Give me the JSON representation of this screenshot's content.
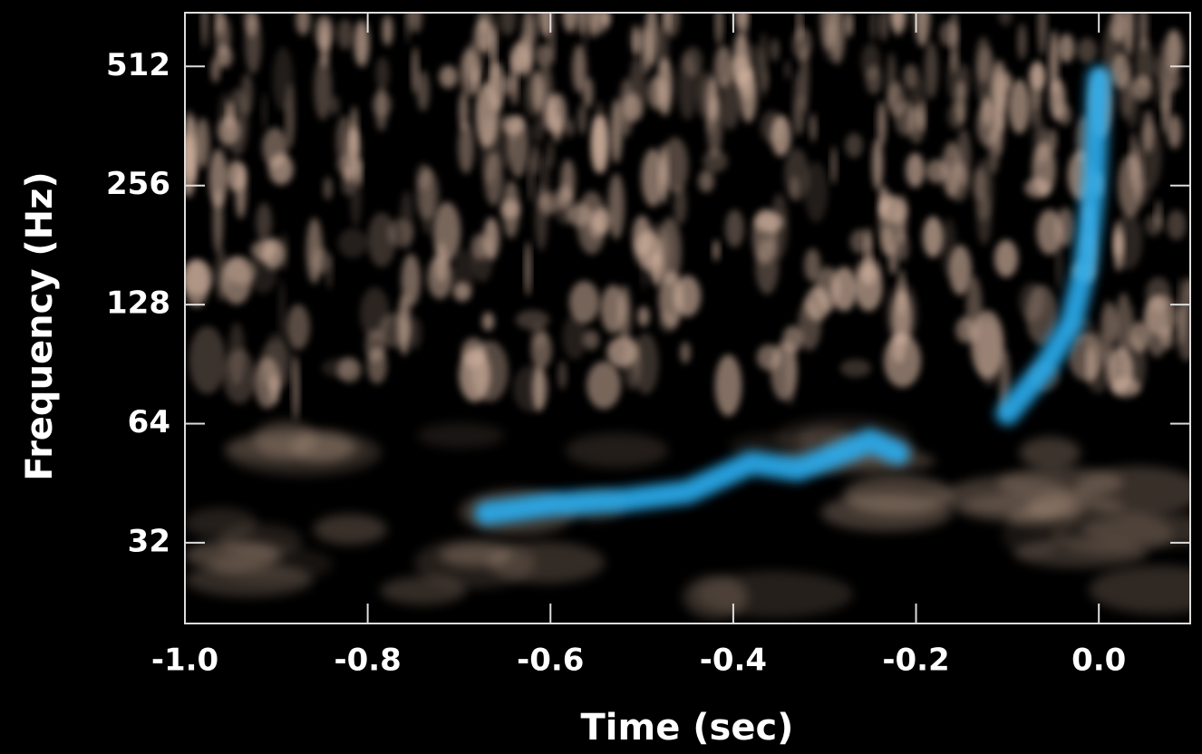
{
  "chart_data": {
    "type": "line",
    "x_label": "Time (sec)",
    "y_label": "Frequency (Hz)",
    "xlim": [
      -1.0,
      0.1
    ],
    "xticks": [
      {
        "value": -1.0,
        "label": "-1.0"
      },
      {
        "value": -0.8,
        "label": "-0.8"
      },
      {
        "value": -0.6,
        "label": "-0.6"
      },
      {
        "value": -0.4,
        "label": "-0.4"
      },
      {
        "value": -0.2,
        "label": "-0.2"
      },
      {
        "value": 0.0,
        "label": "0.0"
      }
    ],
    "ylim": [
      20,
      700
    ],
    "yticks": [
      32,
      64,
      128,
      256,
      512
    ],
    "y_log": true,
    "color": "#2aaef0",
    "x": [
      -0.67,
      -0.6,
      -0.52,
      -0.45,
      -0.38,
      -0.33,
      -0.29,
      -0.25,
      -0.22,
      -0.15,
      -0.1,
      -0.06,
      -0.03,
      -0.015,
      -0.005,
      0.0
    ],
    "values": [
      38,
      40,
      41,
      43,
      51,
      49,
      53,
      58,
      54,
      null,
      68,
      88,
      115,
      160,
      260,
      480
    ]
  }
}
